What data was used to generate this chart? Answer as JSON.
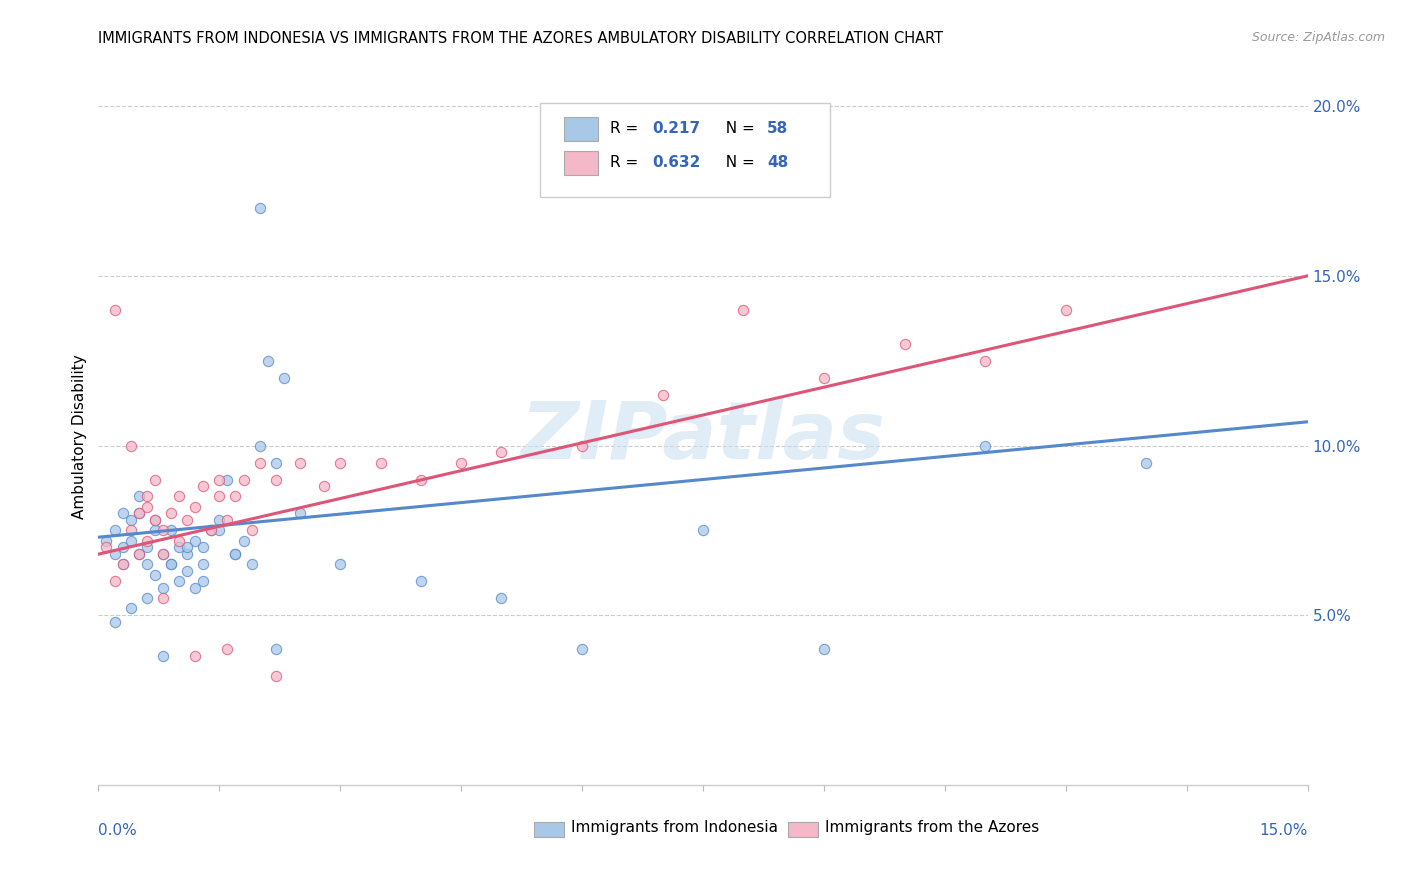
{
  "title": "IMMIGRANTS FROM INDONESIA VS IMMIGRANTS FROM THE AZORES AMBULATORY DISABILITY CORRELATION CHART",
  "source": "Source: ZipAtlas.com",
  "ylabel": "Ambulatory Disability",
  "xlim": [
    0.0,
    0.15
  ],
  "ylim": [
    0.0,
    0.205
  ],
  "yticks": [
    0.05,
    0.1,
    0.15,
    0.2
  ],
  "ytick_labels": [
    "5.0%",
    "10.0%",
    "15.0%",
    "20.0%"
  ],
  "legend_r1": "0.217",
  "legend_n1": "58",
  "legend_r2": "0.632",
  "legend_n2": "48",
  "color_blue": "#a8c8e8",
  "color_pink": "#f4b8c8",
  "color_blue_line": "#5588cc",
  "color_pink_line": "#dd5577",
  "color_text_blue": "#3366bb",
  "watermark": "ZIPatlas",
  "legend_label1": "Immigrants from Indonesia",
  "legend_label2": "Immigrants from the Azores",
  "blue_trend_x": [
    0.0,
    0.15
  ],
  "blue_trend_y": [
    0.073,
    0.107
  ],
  "pink_trend_x": [
    0.0,
    0.15
  ],
  "pink_trend_y": [
    0.068,
    0.15
  ],
  "blue_x": [
    0.001,
    0.002,
    0.002,
    0.003,
    0.003,
    0.004,
    0.004,
    0.005,
    0.005,
    0.006,
    0.006,
    0.007,
    0.007,
    0.008,
    0.008,
    0.009,
    0.009,
    0.01,
    0.01,
    0.011,
    0.011,
    0.012,
    0.012,
    0.013,
    0.013,
    0.014,
    0.015,
    0.016,
    0.017,
    0.018,
    0.019,
    0.02,
    0.021,
    0.022,
    0.023,
    0.003,
    0.005,
    0.007,
    0.009,
    0.011,
    0.013,
    0.015,
    0.017,
    0.02,
    0.025,
    0.03,
    0.04,
    0.05,
    0.06,
    0.075,
    0.09,
    0.11,
    0.13,
    0.002,
    0.004,
    0.006,
    0.008,
    0.022
  ],
  "blue_y": [
    0.072,
    0.068,
    0.075,
    0.07,
    0.065,
    0.072,
    0.078,
    0.068,
    0.08,
    0.065,
    0.07,
    0.075,
    0.062,
    0.068,
    0.058,
    0.075,
    0.065,
    0.07,
    0.06,
    0.068,
    0.063,
    0.072,
    0.058,
    0.065,
    0.07,
    0.075,
    0.078,
    0.09,
    0.068,
    0.072,
    0.065,
    0.1,
    0.125,
    0.095,
    0.12,
    0.08,
    0.085,
    0.078,
    0.065,
    0.07,
    0.06,
    0.075,
    0.068,
    0.17,
    0.08,
    0.065,
    0.06,
    0.055,
    0.04,
    0.075,
    0.04,
    0.1,
    0.095,
    0.048,
    0.052,
    0.055,
    0.038,
    0.04
  ],
  "pink_x": [
    0.001,
    0.002,
    0.003,
    0.004,
    0.005,
    0.005,
    0.006,
    0.006,
    0.007,
    0.007,
    0.008,
    0.008,
    0.009,
    0.01,
    0.01,
    0.011,
    0.012,
    0.013,
    0.014,
    0.015,
    0.015,
    0.016,
    0.017,
    0.018,
    0.019,
    0.02,
    0.022,
    0.025,
    0.028,
    0.03,
    0.035,
    0.04,
    0.045,
    0.05,
    0.06,
    0.07,
    0.08,
    0.09,
    0.1,
    0.11,
    0.12,
    0.002,
    0.004,
    0.006,
    0.008,
    0.012,
    0.016,
    0.022
  ],
  "pink_y": [
    0.07,
    0.06,
    0.065,
    0.075,
    0.068,
    0.08,
    0.072,
    0.085,
    0.078,
    0.09,
    0.075,
    0.068,
    0.08,
    0.085,
    0.072,
    0.078,
    0.082,
    0.088,
    0.075,
    0.085,
    0.09,
    0.078,
    0.085,
    0.09,
    0.075,
    0.095,
    0.09,
    0.095,
    0.088,
    0.095,
    0.095,
    0.09,
    0.095,
    0.098,
    0.1,
    0.115,
    0.14,
    0.12,
    0.13,
    0.125,
    0.14,
    0.14,
    0.1,
    0.082,
    0.055,
    0.038,
    0.04,
    0.032
  ]
}
